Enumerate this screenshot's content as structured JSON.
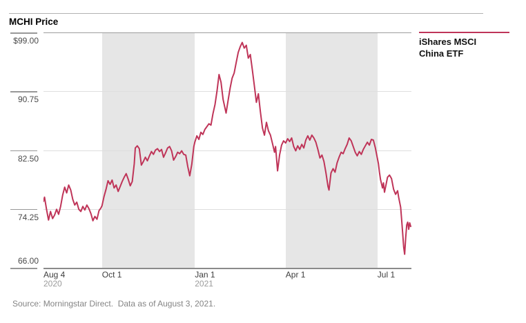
{
  "header": {
    "title": "MCHI Price"
  },
  "legend": {
    "label_line1": "iShares MSCI",
    "label_line2": "China ETF",
    "series_color": "#bf3458"
  },
  "footer": {
    "source": "Source: Morningstar Direct.  Data as of August 3, 2021."
  },
  "colors": {
    "series": "#bf3458",
    "shaded_band": "#e6e6e6",
    "gridline": "#dedede",
    "plot_top_border": "#9c9c9c",
    "axis": "#8a8a8a"
  },
  "chart_data": {
    "type": "line",
    "title": "MCHI Price",
    "legend_position": "top-right",
    "grid": true,
    "y_axis": {
      "range": [
        66,
        99
      ],
      "ticks": [
        {
          "label": "$99.00",
          "value": 99.0
        },
        {
          "label": "90.75",
          "value": 90.75
        },
        {
          "label": "82.50",
          "value": 82.5
        },
        {
          "label": "74.25",
          "value": 74.25
        },
        {
          "label": "66.00",
          "value": 66.0
        }
      ]
    },
    "x_axis": {
      "range_days": [
        0,
        364
      ],
      "ticks": [
        {
          "label": "Aug 4",
          "sublabel": "2020",
          "day": 0
        },
        {
          "label": "Oct 1",
          "sublabel": "",
          "day": 58
        },
        {
          "label": "Jan 1",
          "sublabel": "2021",
          "day": 150
        },
        {
          "label": "Apr 1",
          "sublabel": "",
          "day": 240
        },
        {
          "label": "Jul 1",
          "sublabel": "",
          "day": 331
        }
      ]
    },
    "shaded_bands_days": [
      [
        58,
        150
      ],
      [
        240,
        331
      ]
    ],
    "series": [
      {
        "name": "iShares MSCI China ETF",
        "color": "#bf3458",
        "points": [
          [
            0,
            75.3
          ],
          [
            1,
            75.9
          ],
          [
            3,
            74.2
          ],
          [
            5,
            72.7
          ],
          [
            7,
            73.9
          ],
          [
            9,
            72.9
          ],
          [
            11,
            73.4
          ],
          [
            13,
            74.2
          ],
          [
            15,
            73.5
          ],
          [
            17,
            74.6
          ],
          [
            19,
            76.2
          ],
          [
            21,
            77.3
          ],
          [
            23,
            76.5
          ],
          [
            25,
            77.6
          ],
          [
            27,
            76.9
          ],
          [
            29,
            75.6
          ],
          [
            31,
            74.8
          ],
          [
            33,
            75.2
          ],
          [
            35,
            74.2
          ],
          [
            37,
            73.9
          ],
          [
            39,
            74.6
          ],
          [
            41,
            74.1
          ],
          [
            43,
            74.8
          ],
          [
            45,
            74.3
          ],
          [
            47,
            73.6
          ],
          [
            49,
            72.6
          ],
          [
            51,
            73.2
          ],
          [
            53,
            72.8
          ],
          [
            55,
            74.0
          ],
          [
            57,
            74.4
          ],
          [
            58,
            74.7
          ],
          [
            60,
            76.0
          ],
          [
            62,
            77.0
          ],
          [
            64,
            78.2
          ],
          [
            66,
            77.7
          ],
          [
            68,
            78.3
          ],
          [
            70,
            77.2
          ],
          [
            72,
            77.6
          ],
          [
            74,
            76.7
          ],
          [
            76,
            77.4
          ],
          [
            78,
            78.1
          ],
          [
            80,
            78.7
          ],
          [
            82,
            79.2
          ],
          [
            84,
            78.4
          ],
          [
            86,
            77.5
          ],
          [
            88,
            78.1
          ],
          [
            90,
            80.6
          ],
          [
            91,
            82.8
          ],
          [
            93,
            83.1
          ],
          [
            95,
            82.7
          ],
          [
            97,
            80.4
          ],
          [
            99,
            80.9
          ],
          [
            101,
            81.5
          ],
          [
            103,
            81.0
          ],
          [
            105,
            81.7
          ],
          [
            107,
            82.3
          ],
          [
            109,
            81.9
          ],
          [
            111,
            82.5
          ],
          [
            113,
            82.7
          ],
          [
            115,
            82.3
          ],
          [
            117,
            82.6
          ],
          [
            119,
            81.5
          ],
          [
            121,
            82.1
          ],
          [
            123,
            82.8
          ],
          [
            125,
            83.0
          ],
          [
            127,
            82.4
          ],
          [
            129,
            81.1
          ],
          [
            131,
            81.6
          ],
          [
            133,
            82.2
          ],
          [
            135,
            82.0
          ],
          [
            137,
            82.4
          ],
          [
            139,
            81.9
          ],
          [
            141,
            81.8
          ],
          [
            143,
            80.2
          ],
          [
            145,
            78.9
          ],
          [
            147,
            80.5
          ],
          [
            149,
            83.0
          ],
          [
            150,
            83.6
          ],
          [
            152,
            84.5
          ],
          [
            154,
            84.0
          ],
          [
            156,
            85.0
          ],
          [
            158,
            84.7
          ],
          [
            160,
            85.4
          ],
          [
            162,
            85.8
          ],
          [
            164,
            86.2
          ],
          [
            166,
            86.0
          ],
          [
            168,
            87.6
          ],
          [
            170,
            88.9
          ],
          [
            172,
            90.8
          ],
          [
            174,
            93.1
          ],
          [
            176,
            92.0
          ],
          [
            178,
            89.6
          ],
          [
            181,
            87.7
          ],
          [
            183,
            89.5
          ],
          [
            185,
            91.2
          ],
          [
            187,
            92.6
          ],
          [
            189,
            93.3
          ],
          [
            191,
            94.8
          ],
          [
            193,
            96.2
          ],
          [
            195,
            97.0
          ],
          [
            197,
            97.6
          ],
          [
            199,
            96.8
          ],
          [
            201,
            97.2
          ],
          [
            203,
            95.4
          ],
          [
            205,
            95.9
          ],
          [
            207,
            93.8
          ],
          [
            209,
            91.5
          ],
          [
            211,
            89.2
          ],
          [
            213,
            90.4
          ],
          [
            215,
            87.9
          ],
          [
            217,
            85.6
          ],
          [
            219,
            84.6
          ],
          [
            221,
            86.4
          ],
          [
            223,
            85.2
          ],
          [
            225,
            84.6
          ],
          [
            227,
            83.4
          ],
          [
            229,
            82.2
          ],
          [
            230,
            83.0
          ],
          [
            232,
            79.6
          ],
          [
            234,
            81.8
          ],
          [
            236,
            83.2
          ],
          [
            238,
            83.8
          ],
          [
            240,
            83.5
          ],
          [
            242,
            84.1
          ],
          [
            244,
            83.7
          ],
          [
            246,
            84.2
          ],
          [
            248,
            83.0
          ],
          [
            250,
            82.4
          ],
          [
            252,
            83.1
          ],
          [
            254,
            82.6
          ],
          [
            256,
            83.3
          ],
          [
            258,
            82.8
          ],
          [
            260,
            83.9
          ],
          [
            262,
            84.5
          ],
          [
            264,
            83.9
          ],
          [
            266,
            84.6
          ],
          [
            268,
            84.2
          ],
          [
            270,
            83.6
          ],
          [
            272,
            82.6
          ],
          [
            274,
            81.4
          ],
          [
            276,
            81.8
          ],
          [
            278,
            80.9
          ],
          [
            280,
            79.3
          ],
          [
            282,
            77.4
          ],
          [
            283,
            76.9
          ],
          [
            285,
            79.3
          ],
          [
            287,
            79.9
          ],
          [
            289,
            79.4
          ],
          [
            291,
            80.7
          ],
          [
            293,
            81.5
          ],
          [
            295,
            82.2
          ],
          [
            297,
            82.0
          ],
          [
            299,
            82.7
          ],
          [
            301,
            83.3
          ],
          [
            303,
            84.2
          ],
          [
            305,
            83.8
          ],
          [
            307,
            83.0
          ],
          [
            309,
            82.2
          ],
          [
            311,
            81.7
          ],
          [
            313,
            82.3
          ],
          [
            315,
            81.9
          ],
          [
            317,
            82.6
          ],
          [
            319,
            83.1
          ],
          [
            321,
            83.6
          ],
          [
            323,
            83.2
          ],
          [
            325,
            84.0
          ],
          [
            327,
            83.9
          ],
          [
            329,
            82.8
          ],
          [
            331,
            81.3
          ],
          [
            332,
            80.6
          ],
          [
            333,
            79.4
          ],
          [
            334,
            78.4
          ],
          [
            336,
            77.2
          ],
          [
            337,
            77.9
          ],
          [
            338,
            76.6
          ],
          [
            339,
            77.3
          ],
          [
            341,
            78.7
          ],
          [
            343,
            79.0
          ],
          [
            345,
            78.5
          ],
          [
            347,
            77.0
          ],
          [
            349,
            76.3
          ],
          [
            351,
            76.8
          ],
          [
            352,
            75.9
          ],
          [
            354,
            74.5
          ],
          [
            355,
            72.8
          ],
          [
            356,
            70.9
          ],
          [
            357,
            68.9
          ],
          [
            358,
            67.9
          ],
          [
            359,
            70.2
          ],
          [
            360,
            72.0
          ],
          [
            361,
            72.4
          ],
          [
            362,
            71.4
          ],
          [
            363,
            72.3
          ],
          [
            364,
            71.8
          ]
        ]
      }
    ]
  }
}
